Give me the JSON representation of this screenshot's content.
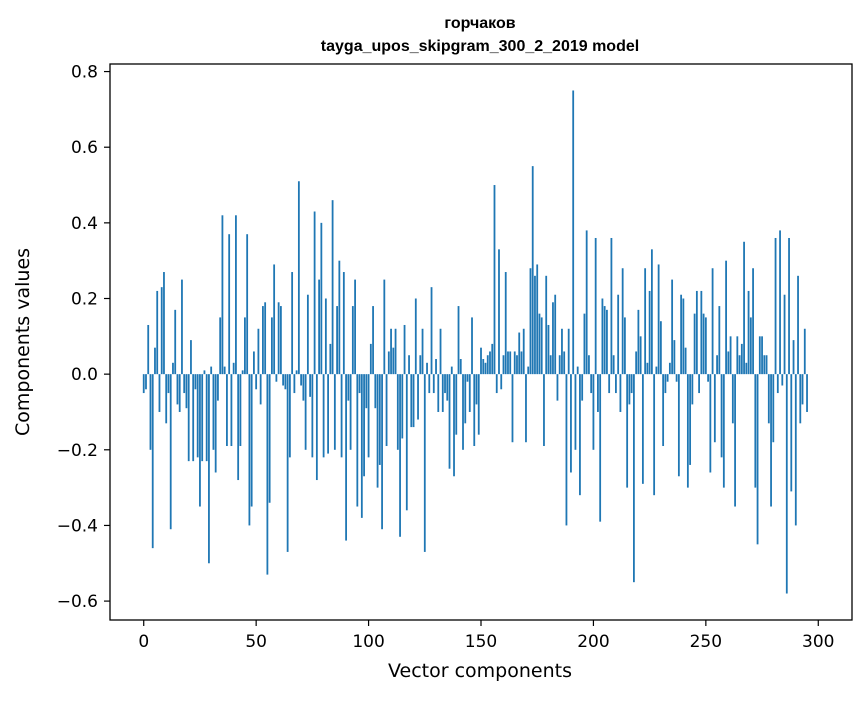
{
  "chart_data": {
    "type": "bar",
    "title_line1": "горчаков",
    "title_line2": "tayga_upos_skipgram_300_2_2019 model",
    "xlabel": "Vector components",
    "ylabel": "Components values",
    "xlim": [
      -15,
      315
    ],
    "ylim": [
      -0.65,
      0.82
    ],
    "xticks": [
      0,
      50,
      100,
      150,
      200,
      250,
      300
    ],
    "xtick_labels": [
      "0",
      "50",
      "100",
      "150",
      "200",
      "250",
      "300"
    ],
    "yticks": [
      -0.6,
      -0.4,
      -0.2,
      0.0,
      0.2,
      0.4,
      0.6,
      0.8
    ],
    "ytick_labels": [
      "−0.6",
      "−0.4",
      "−0.2",
      "0.0",
      "0.2",
      "0.4",
      "0.6",
      "0.8"
    ],
    "grid": false,
    "bar_color": "#1f77b4",
    "values": [
      -0.05,
      -0.04,
      0.13,
      -0.2,
      -0.46,
      0.07,
      0.22,
      -0.1,
      0.23,
      0.27,
      -0.13,
      -0.05,
      -0.41,
      0.03,
      0.17,
      -0.08,
      -0.1,
      0.25,
      -0.05,
      -0.09,
      -0.23,
      0.09,
      -0.23,
      -0.04,
      -0.22,
      -0.35,
      -0.23,
      0.01,
      -0.23,
      -0.5,
      0.02,
      -0.2,
      -0.26,
      -0.07,
      0.15,
      0.42,
      0.02,
      -0.19,
      0.37,
      -0.19,
      0.03,
      0.42,
      -0.28,
      -0.19,
      0.01,
      0.15,
      0.37,
      -0.4,
      -0.35,
      0.06,
      -0.04,
      0.12,
      -0.08,
      0.18,
      0.19,
      -0.53,
      -0.34,
      0.15,
      0.29,
      -0.02,
      0.19,
      0.18,
      -0.03,
      -0.04,
      -0.47,
      -0.22,
      0.27,
      -0.05,
      0.01,
      0.51,
      -0.03,
      -0.07,
      -0.2,
      0.21,
      -0.06,
      -0.22,
      0.43,
      -0.28,
      0.25,
      0.4,
      -0.22,
      0.2,
      -0.21,
      0.08,
      0.46,
      -0.2,
      0.18,
      0.3,
      -0.22,
      0.27,
      -0.44,
      -0.07,
      -0.2,
      0.18,
      0.25,
      -0.35,
      -0.05,
      -0.38,
      -0.27,
      -0.09,
      -0.22,
      0.08,
      0.18,
      -0.09,
      -0.3,
      -0.24,
      -0.41,
      0.25,
      -0.19,
      0.06,
      0.12,
      0.07,
      0.12,
      -0.2,
      -0.43,
      -0.17,
      0.13,
      -0.36,
      0.05,
      -0.14,
      -0.14,
      0.2,
      -0.12,
      0.05,
      0.12,
      -0.47,
      0.03,
      -0.05,
      0.23,
      -0.05,
      0.04,
      -0.1,
      0.12,
      -0.1,
      -0.05,
      -0.07,
      -0.25,
      0.02,
      -0.27,
      -0.16,
      0.18,
      0.04,
      -0.2,
      -0.13,
      -0.02,
      -0.1,
      0.15,
      -0.19,
      -0.08,
      -0.16,
      0.07,
      0.04,
      0.03,
      0.05,
      0.06,
      0.08,
      0.5,
      -0.05,
      0.33,
      -0.04,
      0.05,
      0.27,
      0.06,
      0.06,
      -0.18,
      0.06,
      0.05,
      0.11,
      0.06,
      0.12,
      -0.18,
      0.02,
      0.28,
      0.55,
      0.26,
      0.29,
      0.16,
      0.15,
      -0.19,
      0.26,
      0.13,
      0.05,
      0.19,
      0.21,
      -0.07,
      0.05,
      0.12,
      0.06,
      -0.4,
      0.12,
      -0.26,
      0.75,
      -0.2,
      0.02,
      -0.32,
      -0.07,
      0.16,
      0.38,
      0.05,
      -0.05,
      -0.2,
      0.36,
      -0.1,
      -0.39,
      0.2,
      0.18,
      0.17,
      -0.05,
      0.36,
      0.05,
      -0.05,
      0.21,
      -0.1,
      0.28,
      0.15,
      -0.3,
      -0.08,
      -0.05,
      -0.55,
      0.06,
      0.17,
      0.1,
      -0.29,
      0.28,
      0.03,
      0.22,
      0.33,
      -0.32,
      0.02,
      0.29,
      0.14,
      -0.19,
      -0.05,
      -0.02,
      0.03,
      0.25,
      0.09,
      -0.02,
      -0.27,
      0.21,
      0.2,
      0.07,
      -0.3,
      -0.24,
      -0.08,
      0.16,
      0.22,
      -0.05,
      0.22,
      0.16,
      0.15,
      -0.02,
      -0.26,
      0.28,
      -0.18,
      0.05,
      0.18,
      -0.22,
      -0.3,
      0.3,
      0.06,
      0.1,
      -0.13,
      -0.35,
      0.1,
      0.05,
      0.08,
      0.35,
      0.03,
      0.22,
      0.15,
      0.28,
      -0.3,
      -0.45,
      0.1,
      0.1,
      0.05,
      0.05,
      -0.13,
      -0.35,
      -0.18,
      0.36,
      -0.05,
      0.38,
      -0.03,
      0.21,
      -0.58,
      0.36,
      -0.31,
      0.09,
      -0.4,
      0.26,
      -0.13,
      -0.08,
      0.12,
      -0.1
    ]
  }
}
